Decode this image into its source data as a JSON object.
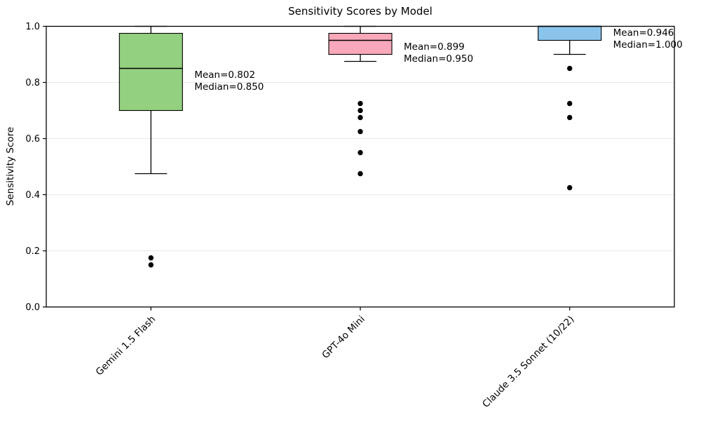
{
  "chart_data": {
    "type": "box",
    "title": "Sensitivity Scores by Model",
    "xlabel": "",
    "ylabel": "Sensitivity Score",
    "ylim": [
      0.0,
      1.0
    ],
    "yticks": [
      0.0,
      0.2,
      0.4,
      0.6,
      0.8,
      1.0
    ],
    "grid": "horizontal-light",
    "legend": "none",
    "categories": [
      "Gemini 1.5 Flash",
      "GPT-4o Mini",
      "Claude 3.5 Sonnet (10/22)"
    ],
    "series": [
      {
        "name": "Gemini 1.5 Flash",
        "box_color": "#93d07f",
        "q1": 0.7,
        "median": 0.85,
        "q3": 0.975,
        "whisker_low": 0.475,
        "whisker_high": 1.0,
        "outliers": [
          0.175,
          0.15
        ],
        "mean": 0.802,
        "annotation_lines": [
          "Mean=0.802",
          "Median=0.850"
        ]
      },
      {
        "name": "GPT-4o Mini",
        "box_color": "#f8a8ba",
        "q1": 0.9,
        "median": 0.95,
        "q3": 0.975,
        "whisker_low": 0.875,
        "whisker_high": 1.0,
        "outliers": [
          0.725,
          0.7,
          0.675,
          0.625,
          0.55,
          0.475
        ],
        "mean": 0.899,
        "annotation_lines": [
          "Mean=0.899",
          "Median=0.950"
        ]
      },
      {
        "name": "Claude 3.5 Sonnet (10/22)",
        "box_color": "#8ac4ec",
        "q1": 0.95,
        "median": 1.0,
        "q3": 1.0,
        "whisker_low": 0.9,
        "whisker_high": 1.0,
        "outliers": [
          0.85,
          0.725,
          0.675,
          0.425
        ],
        "mean": 0.946,
        "annotation_lines": [
          "Mean=0.946",
          "Median=1.000"
        ]
      }
    ],
    "colors": {
      "median_line": "#000000",
      "box_edge": "#000000",
      "whisker": "#000000",
      "outlier": "#000000",
      "gridline": "#e8e8e8",
      "background": "#ffffff"
    }
  }
}
